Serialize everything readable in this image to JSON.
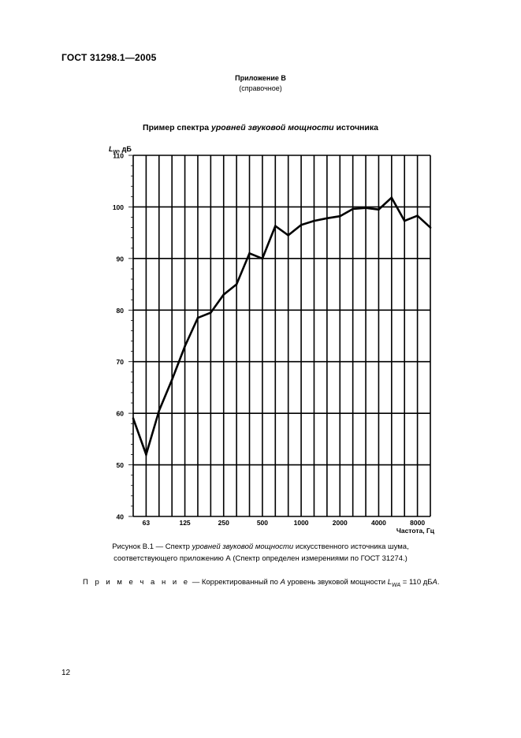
{
  "header": {
    "standard": "ГОСТ  31298.1—2005"
  },
  "appendix": {
    "title": "Приложение В",
    "subtitle": "(справочное)"
  },
  "figure_title": {
    "part1": "Пример спектра ",
    "italic": "уровней звуковой мощности",
    "part2": " источника"
  },
  "chart_data": {
    "type": "line",
    "ylabel_symbol": "L",
    "ylabel_sub": "W",
    "ylabel_unit": ", дБ",
    "xlabel": "Частота, Гц",
    "ylim": [
      40,
      110
    ],
    "yticks": [
      "40",
      "50",
      "60",
      "70",
      "80",
      "90",
      "100",
      "110"
    ],
    "xtick_labels": [
      {
        "index": 1,
        "label": "63"
      },
      {
        "index": 4,
        "label": "125"
      },
      {
        "index": 7,
        "label": "250"
      },
      {
        "index": 10,
        "label": "500"
      },
      {
        "index": 13,
        "label": "1000"
      },
      {
        "index": 16,
        "label": "2000"
      },
      {
        "index": 19,
        "label": "4000"
      },
      {
        "index": 22,
        "label": "8000"
      }
    ],
    "grid": true,
    "series": [
      {
        "values": [
          59,
          52,
          60.5,
          66.5,
          73,
          78.5,
          79.5,
          83,
          85,
          91,
          90,
          96.3,
          94.5,
          96.5,
          97.3,
          97.8,
          98.2,
          99.6,
          99.8,
          99.5,
          101.8,
          97.3,
          98.3,
          96
        ]
      }
    ]
  },
  "caption": {
    "line1_part1": "Рисунок В.1 — Спектр ",
    "line1_italic": "уровней звуковой мощности",
    "line1_part2": " искусственного источника шума,",
    "line2": "соответствующего приложению А (Спектр определен измерениями по ГОСТ 31274.)"
  },
  "note": {
    "label": "П р и м е ч а н и е",
    "text1": " — Корректированный по ",
    "italic_a": "A",
    "text2": " уровень звуковой мощности ",
    "symbol": "L",
    "sub": "WA",
    "text3": " = 110 дБ",
    "suffix": "A",
    "end": "."
  },
  "page_number": "12"
}
